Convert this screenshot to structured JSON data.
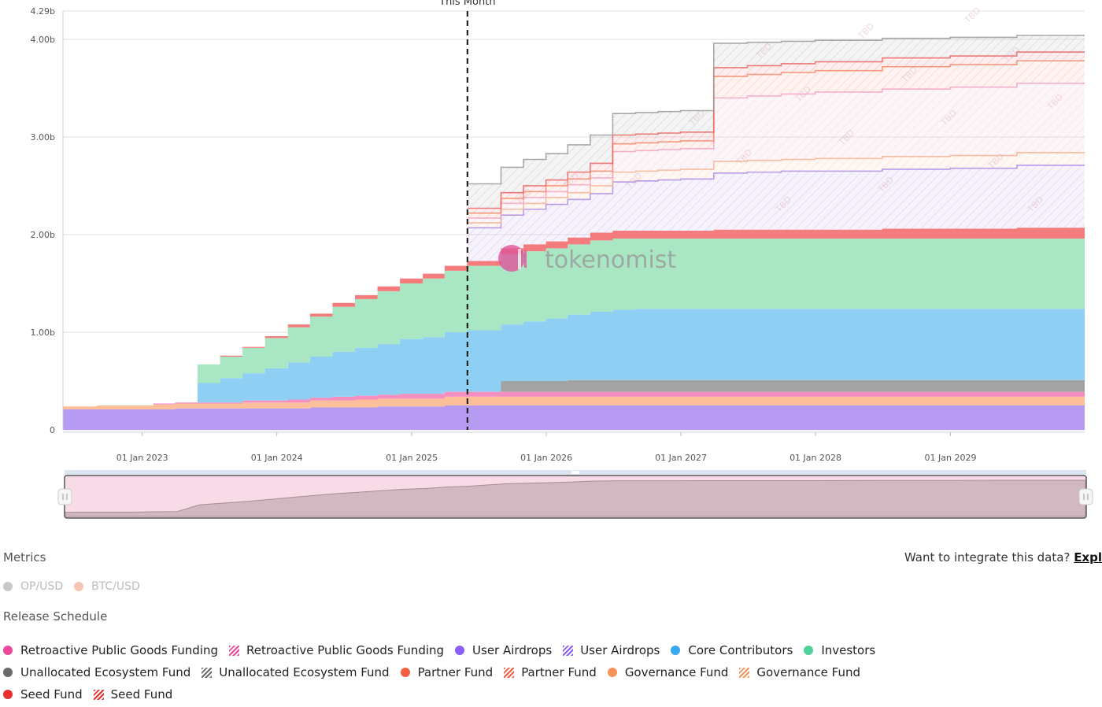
{
  "chart_data": {
    "type": "area",
    "stacked": true,
    "step": true,
    "yaxis": {
      "ticks": [
        "0",
        "1.00b",
        "2.00b",
        "3.00b",
        "4.00b",
        "4.29b"
      ],
      "min": 0,
      "max": 4.29
    },
    "xaxis": {
      "ticks": [
        "01 Jan 2023",
        "01 Jan 2024",
        "01 Jan 2025",
        "01 Jan 2026",
        "01 Jan 2027",
        "01 Jan 2028",
        "01 Jan 2029"
      ],
      "start": "2022-05-31",
      "end": "2029-12-31"
    },
    "this_month": {
      "label": "This Month",
      "date": "2025-06-01"
    },
    "watermark": "tokenomist",
    "tbd_label": "TBD",
    "t": [
      "2022-05-31",
      "2022-08-31",
      "2022-11-30",
      "2023-01-31",
      "2023-03-31",
      "2023-05-31",
      "2023-07-31",
      "2023-09-30",
      "2023-11-30",
      "2024-01-31",
      "2024-03-31",
      "2024-05-31",
      "2024-07-31",
      "2024-09-30",
      "2024-11-30",
      "2025-01-31",
      "2025-03-31",
      "2025-05-31",
      "2025-06-01",
      "2025-08-31",
      "2025-10-31",
      "2025-12-31",
      "2026-02-28",
      "2026-04-30",
      "2026-06-30",
      "2026-08-31",
      "2026-10-31",
      "2026-12-31",
      "2027-03-31",
      "2027-06-30",
      "2027-09-30",
      "2027-12-31",
      "2028-06-30",
      "2028-12-31",
      "2029-06-30",
      "2029-12-31"
    ],
    "series": [
      {
        "name": "User Airdrops",
        "color": "#b79bf3",
        "values": [
          0.21,
          0.21,
          0.21,
          0.21,
          0.22,
          0.22,
          0.22,
          0.22,
          0.22,
          0.22,
          0.23,
          0.23,
          0.23,
          0.24,
          0.24,
          0.24,
          0.25,
          0.25,
          0.25,
          0.25,
          0.25,
          0.25,
          0.25,
          0.25,
          0.25,
          0.25,
          0.25,
          0.25,
          0.25,
          0.25,
          0.25,
          0.25,
          0.25,
          0.25,
          0.25,
          0.25
        ]
      },
      {
        "name": "Governance Fund",
        "color": "#fbbf9a",
        "values": [
          0.03,
          0.04,
          0.04,
          0.05,
          0.05,
          0.05,
          0.05,
          0.06,
          0.06,
          0.06,
          0.07,
          0.07,
          0.08,
          0.08,
          0.08,
          0.08,
          0.09,
          0.09,
          0.09,
          0.09,
          0.09,
          0.09,
          0.09,
          0.09,
          0.09,
          0.09,
          0.09,
          0.09,
          0.09,
          0.09,
          0.09,
          0.09,
          0.09,
          0.09,
          0.09,
          0.09
        ]
      },
      {
        "name": "Retroactive Public Goods Funding",
        "color": "#f58fc0",
        "values": [
          0,
          0,
          0,
          0.01,
          0.01,
          0.01,
          0.01,
          0.02,
          0.02,
          0.03,
          0.03,
          0.04,
          0.04,
          0.04,
          0.05,
          0.05,
          0.05,
          0.05,
          0.05,
          0.05,
          0.05,
          0.05,
          0.05,
          0.05,
          0.05,
          0.05,
          0.05,
          0.05,
          0.05,
          0.05,
          0.05,
          0.05,
          0.05,
          0.05,
          0.05,
          0.05
        ]
      },
      {
        "name": "Unallocated Ecosystem Fund",
        "color": "#a3a3a3",
        "values": [
          0,
          0,
          0,
          0,
          0,
          0,
          0,
          0,
          0,
          0,
          0,
          0,
          0,
          0,
          0,
          0,
          0,
          0,
          0,
          0.11,
          0.11,
          0.11,
          0.12,
          0.12,
          0.12,
          0.12,
          0.12,
          0.12,
          0.12,
          0.12,
          0.12,
          0.12,
          0.12,
          0.12,
          0.12,
          0.12
        ]
      },
      {
        "name": "Core Contributors",
        "color": "#90cff4",
        "values": [
          0,
          0,
          0,
          0,
          0,
          0.2,
          0.25,
          0.28,
          0.33,
          0.38,
          0.42,
          0.46,
          0.49,
          0.52,
          0.56,
          0.58,
          0.61,
          0.63,
          0.63,
          0.58,
          0.61,
          0.64,
          0.67,
          0.7,
          0.72,
          0.73,
          0.73,
          0.73,
          0.73,
          0.73,
          0.73,
          0.73,
          0.73,
          0.73,
          0.73,
          0.73
        ]
      },
      {
        "name": "Investors",
        "color": "#a8e6c4",
        "values": [
          0,
          0,
          0,
          0,
          0,
          0.19,
          0.22,
          0.26,
          0.31,
          0.36,
          0.41,
          0.46,
          0.5,
          0.54,
          0.57,
          0.6,
          0.63,
          0.66,
          0.66,
          0.72,
          0.72,
          0.72,
          0.72,
          0.73,
          0.73,
          0.72,
          0.72,
          0.72,
          0.72,
          0.72,
          0.72,
          0.72,
          0.72,
          0.72,
          0.72,
          0.72
        ]
      },
      {
        "name": "Seed Fund",
        "color": "#f47c7c",
        "values": [
          0,
          0,
          0,
          0,
          0,
          0,
          0.01,
          0.01,
          0.02,
          0.03,
          0.03,
          0.04,
          0.04,
          0.05,
          0.05,
          0.05,
          0.05,
          0.05,
          0.05,
          0.06,
          0.07,
          0.07,
          0.07,
          0.08,
          0.08,
          0.08,
          0.08,
          0.08,
          0.09,
          0.09,
          0.09,
          0.09,
          0.1,
          0.1,
          0.11,
          0.11
        ]
      }
    ],
    "tbd_series": [
      {
        "name": "User Airdrops",
        "color": "#a98ae8",
        "values": [
          0,
          0,
          0,
          0,
          0,
          0,
          0,
          0,
          0,
          0,
          0,
          0,
          0,
          0,
          0,
          0,
          0,
          0,
          0.34,
          0.34,
          0.36,
          0.38,
          0.39,
          0.4,
          0.5,
          0.51,
          0.52,
          0.53,
          0.58,
          0.59,
          0.6,
          0.6,
          0.61,
          0.62,
          0.64,
          0.65
        ]
      },
      {
        "name": "Governance Fund",
        "color": "#f6b38e",
        "values": [
          0,
          0,
          0,
          0,
          0,
          0,
          0,
          0,
          0,
          0,
          0,
          0,
          0,
          0,
          0,
          0,
          0,
          0,
          0.05,
          0.06,
          0.06,
          0.07,
          0.07,
          0.08,
          0.1,
          0.1,
          0.1,
          0.1,
          0.12,
          0.12,
          0.12,
          0.13,
          0.13,
          0.13,
          0.13,
          0.13
        ]
      },
      {
        "name": "Retroactive Public Goods Funding",
        "color": "#f3a6c8",
        "values": [
          0,
          0,
          0,
          0,
          0,
          0,
          0,
          0,
          0,
          0,
          0,
          0,
          0,
          0,
          0,
          0,
          0,
          0,
          0.05,
          0.06,
          0.06,
          0.06,
          0.08,
          0.08,
          0.21,
          0.21,
          0.21,
          0.21,
          0.65,
          0.66,
          0.67,
          0.68,
          0.69,
          0.7,
          0.71,
          0.72
        ]
      },
      {
        "name": "Partner Fund",
        "color": "#f58c6a",
        "values": [
          0,
          0,
          0,
          0,
          0,
          0,
          0,
          0,
          0,
          0,
          0,
          0,
          0,
          0,
          0,
          0,
          0,
          0,
          0.05,
          0.05,
          0.06,
          0.06,
          0.06,
          0.07,
          0.08,
          0.08,
          0.08,
          0.08,
          0.22,
          0.22,
          0.22,
          0.22,
          0.23,
          0.23,
          0.23,
          0.23
        ]
      },
      {
        "name": "Seed Fund",
        "color": "#f06060",
        "values": [
          0,
          0,
          0,
          0,
          0,
          0,
          0,
          0,
          0,
          0,
          0,
          0,
          0,
          0,
          0,
          0,
          0,
          0,
          0.05,
          0.06,
          0.06,
          0.06,
          0.07,
          0.08,
          0.09,
          0.09,
          0.09,
          0.09,
          0.09,
          0.09,
          0.09,
          0.09,
          0.09,
          0.09,
          0.09,
          0.09
        ]
      },
      {
        "name": "Unallocated Ecosystem Fund",
        "color": "#9a9a9a",
        "values": [
          0,
          0,
          0,
          0,
          0,
          0,
          0,
          0,
          0,
          0,
          0,
          0,
          0,
          0,
          0,
          0,
          0,
          0,
          0.25,
          0.26,
          0.27,
          0.27,
          0.28,
          0.29,
          0.22,
          0.22,
          0.22,
          0.22,
          0.25,
          0.24,
          0.23,
          0.22,
          0.2,
          0.19,
          0.17,
          0.15
        ]
      }
    ],
    "navigator": {
      "color": "#f7dbe6"
    }
  },
  "metrics": {
    "title": "Metrics",
    "items": [
      {
        "label": "OP/USD",
        "color": "#c8c8c8"
      },
      {
        "label": "BTC/USD",
        "color": "#f3c6b4"
      }
    ]
  },
  "integrate": {
    "text": "Want to integrate this data?",
    "link": "Expl"
  },
  "release_schedule": {
    "title": "Release Schedule",
    "rows": [
      [
        {
          "label": "Retroactive Public Goods Funding",
          "color": "#ec4899",
          "kind": "dot"
        },
        {
          "label": "Retroactive Public Goods Funding",
          "color": "#ec4899",
          "kind": "hatch"
        },
        {
          "label": "User Airdrops",
          "color": "#8b5cf6",
          "kind": "dot"
        },
        {
          "label": "User Airdrops",
          "color": "#8b5cf6",
          "kind": "hatch"
        },
        {
          "label": "Core Contributors",
          "color": "#38a9ec",
          "kind": "dot"
        },
        {
          "label": "Investors",
          "color": "#4ed39a",
          "kind": "dot"
        }
      ],
      [
        {
          "label": "Unallocated Ecosystem Fund",
          "color": "#6b6b6b",
          "kind": "dot"
        },
        {
          "label": "Unallocated Ecosystem Fund",
          "color": "#6b6b6b",
          "kind": "hatch"
        },
        {
          "label": "Partner Fund",
          "color": "#f2603f",
          "kind": "dot"
        },
        {
          "label": "Partner Fund",
          "color": "#f2603f",
          "kind": "hatch"
        },
        {
          "label": "Governance Fund",
          "color": "#f6935a",
          "kind": "dot"
        },
        {
          "label": "Governance Fund",
          "color": "#f6935a",
          "kind": "hatch"
        }
      ],
      [
        {
          "label": "Seed Fund",
          "color": "#e8302e",
          "kind": "dot"
        },
        {
          "label": "Seed Fund",
          "color": "#e8302e",
          "kind": "hatch"
        }
      ]
    ]
  }
}
